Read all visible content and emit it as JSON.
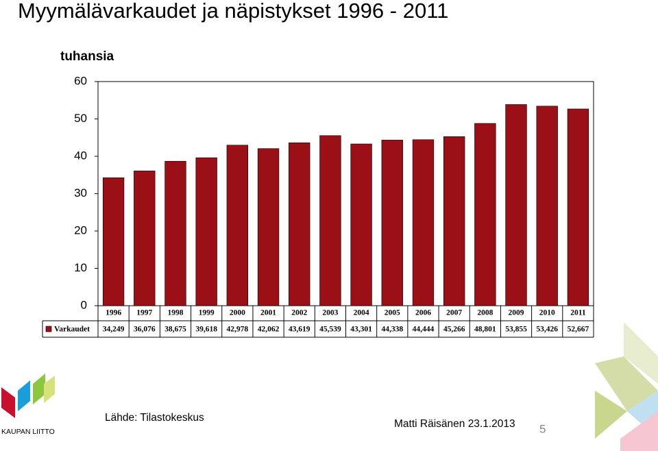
{
  "chart_data": {
    "type": "bar",
    "title": "Myymälävarkaudet ja näpistykset 1996 - 2011",
    "y_axis_label": "tuhansia",
    "categories": [
      "1996",
      "1997",
      "1998",
      "1999",
      "2000",
      "2001",
      "2002",
      "2003",
      "2004",
      "2005",
      "2006",
      "2007",
      "2008",
      "2009",
      "2010",
      "2011"
    ],
    "series": [
      {
        "name": "Varkaudet",
        "color": "#9b0f17",
        "values": [
          34.249,
          36.076,
          38.675,
          39.618,
          42.978,
          42.062,
          43.619,
          45.539,
          43.301,
          44.338,
          44.444,
          45.266,
          48.801,
          53.855,
          53.426,
          52.667
        ],
        "value_labels": [
          "34,249",
          "36,076",
          "38,675",
          "39,618",
          "42,978",
          "42,062",
          "43,619",
          "45,539",
          "43,301",
          "44,338",
          "44,444",
          "45,266",
          "48,801",
          "53,855",
          "53,426",
          "52,667"
        ]
      }
    ],
    "ylim": [
      0,
      60
    ],
    "yticks": [
      0,
      10,
      20,
      30,
      40,
      50,
      60
    ],
    "grid": false
  },
  "slide": {
    "logo_text": "KAUPAN LIITTO",
    "source": "Lähde: Tilastokeskus",
    "author": "Matti Räisänen 23.1.2013",
    "page_number": 5
  }
}
